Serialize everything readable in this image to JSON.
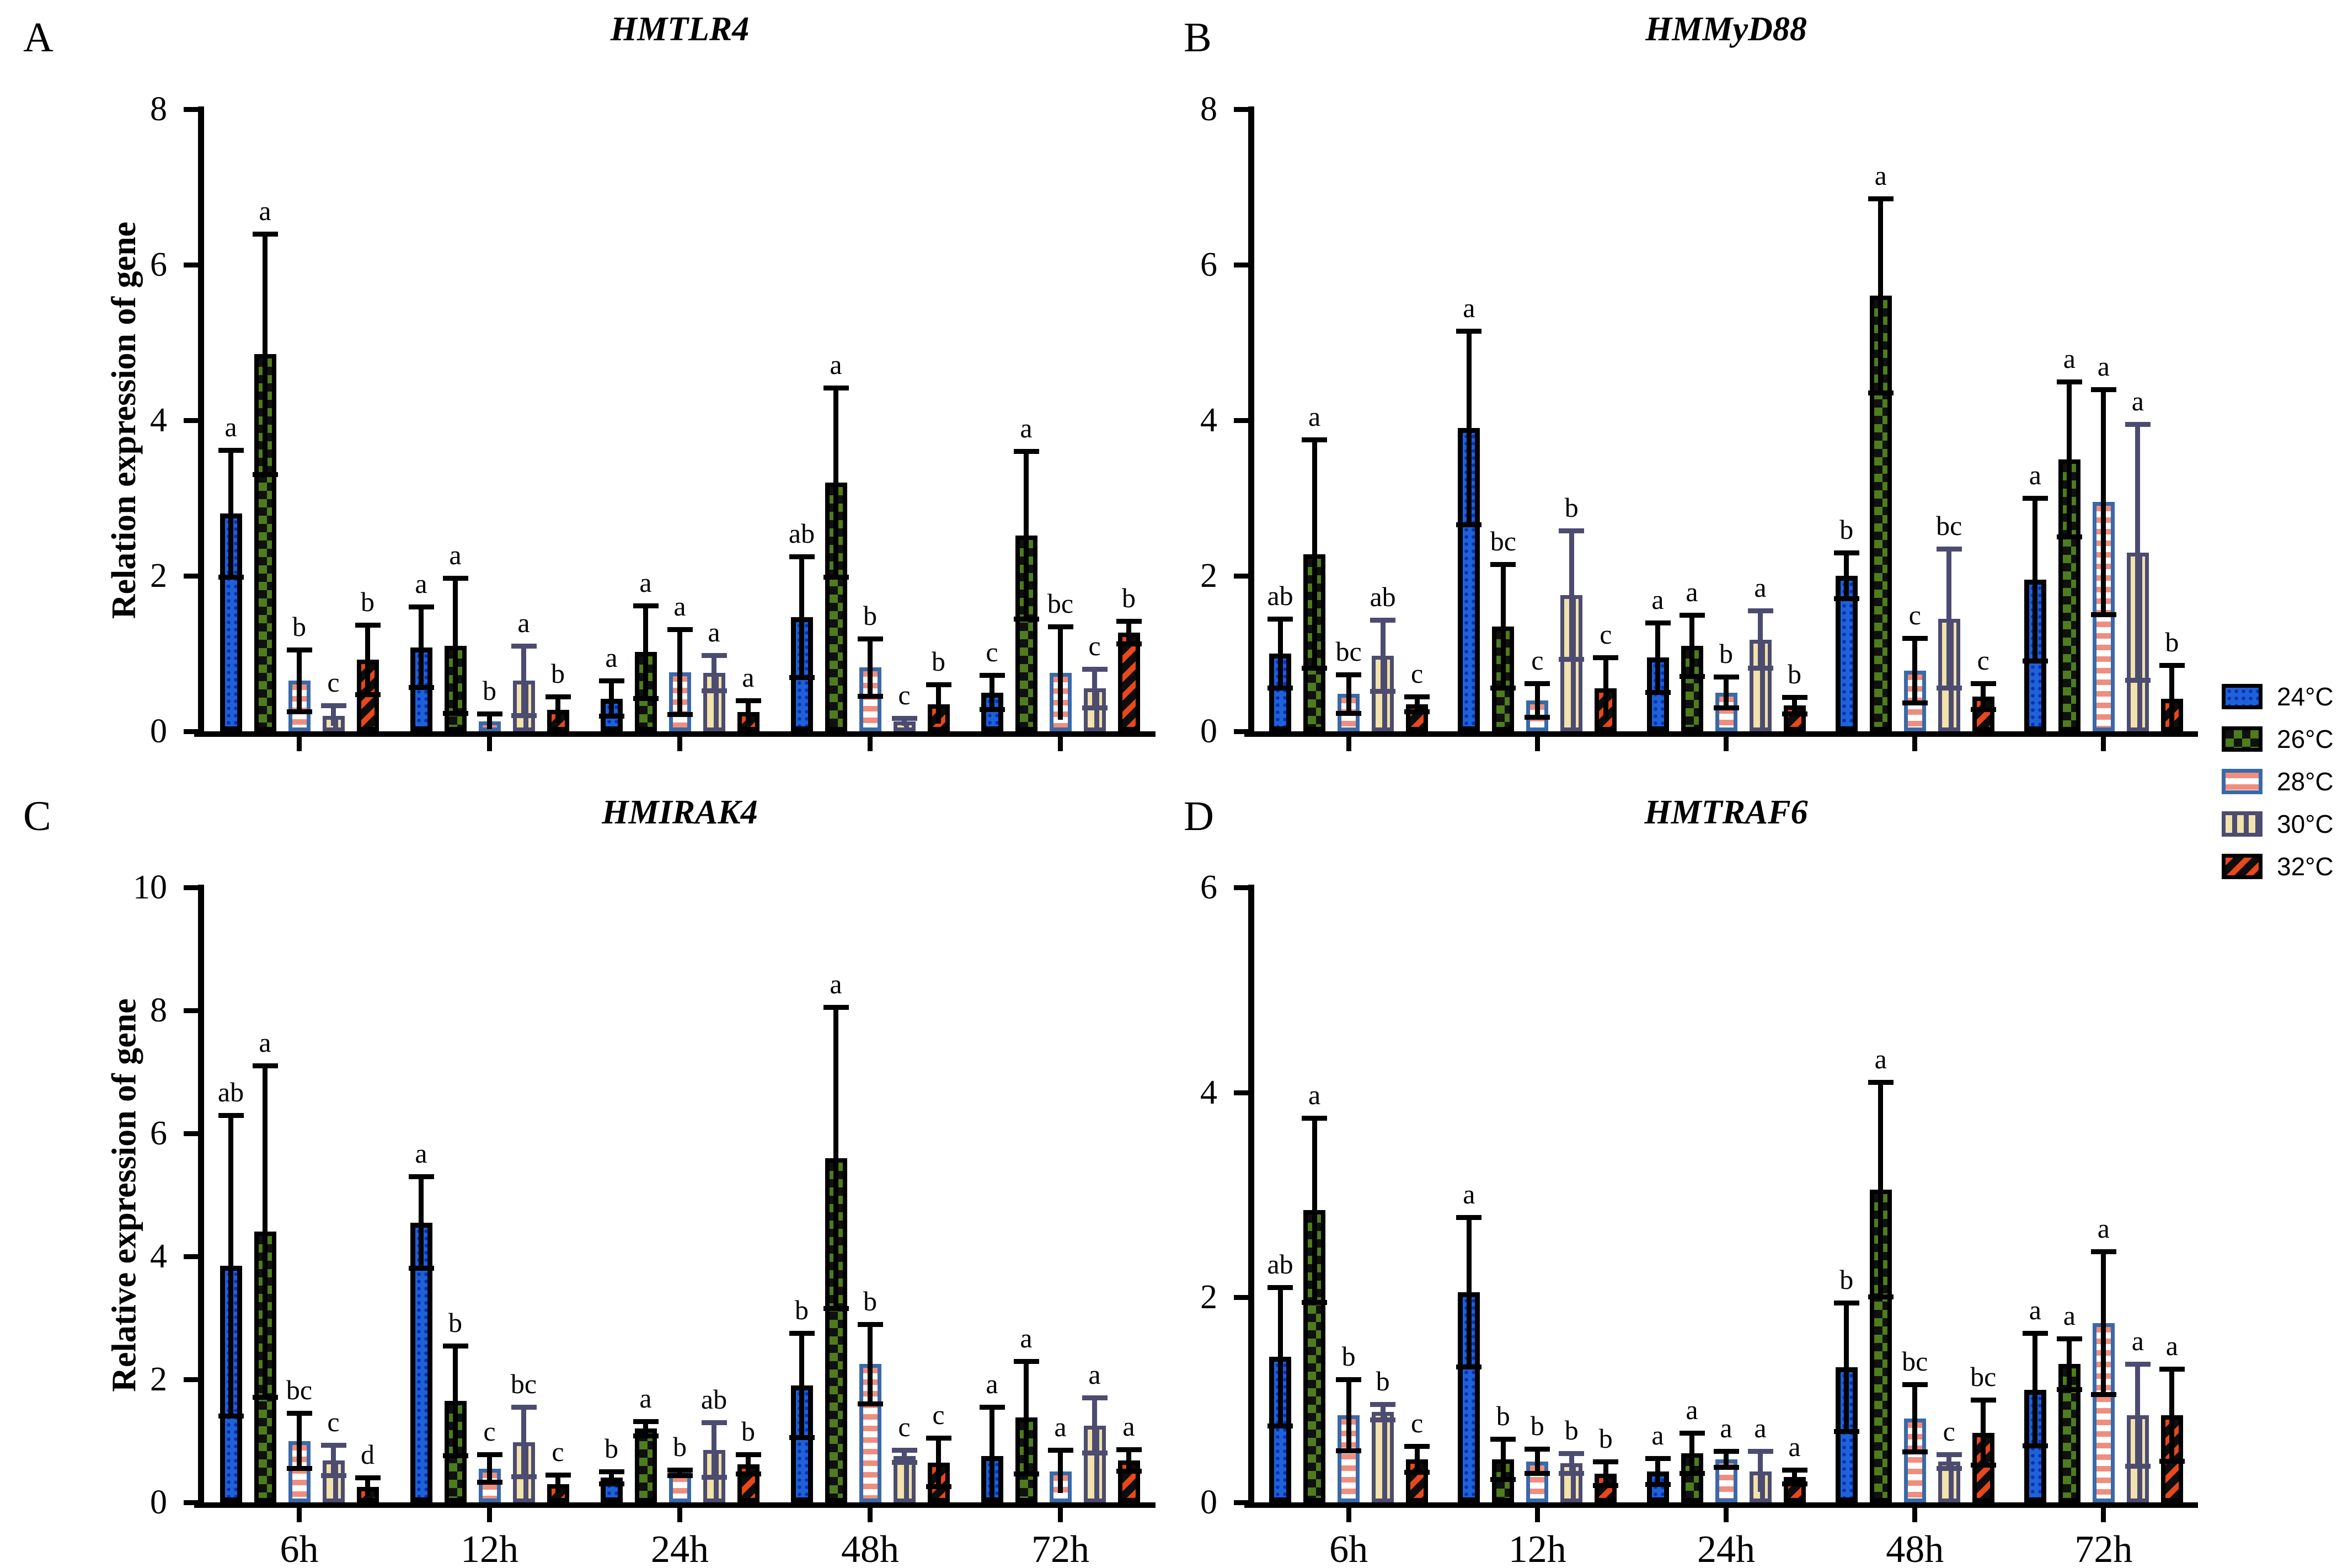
{
  "figure": {
    "panel_letters": [
      "A",
      "B",
      "C",
      "D"
    ],
    "legend": {
      "position": "right-middle",
      "items": [
        {
          "key": "t24",
          "label": "24°C",
          "fill": "#1E62D8",
          "pattern": "dots",
          "border": "#000000"
        },
        {
          "key": "t26",
          "label": "26°C",
          "fill": "#4E7D1D",
          "pattern": "checkerboard",
          "border": "#000000"
        },
        {
          "key": "t28",
          "label": "28°C",
          "fill": "#EF8E7E",
          "pattern": "horizontal-stripes",
          "border": "#3A69A8"
        },
        {
          "key": "t30",
          "label": "30°C",
          "fill": "#F2E2AB",
          "pattern": "vertical-stripes",
          "border": "#4C4C71"
        },
        {
          "key": "t32",
          "label": "32°C",
          "fill": "#E8481A",
          "pattern": "diagonal-stripes",
          "border": "#000000"
        }
      ]
    }
  },
  "chart_data": [
    {
      "type": "bar",
      "panel": "A",
      "title": "HMTLR4",
      "ylabel": "Relation expression of gene",
      "xlabel": "",
      "ylim": [
        0,
        8
      ],
      "yticks": [
        0,
        2,
        4,
        6,
        8
      ],
      "grid": false,
      "categories": [
        "6h",
        "12h",
        "24h",
        "48h",
        "72h"
      ],
      "show_category_labels": false,
      "series": [
        {
          "name": "24°C",
          "key": "t24",
          "values": [
            2.8,
            1.08,
            0.42,
            1.47,
            0.5
          ],
          "errors": [
            0.82,
            0.52,
            0.23,
            0.78,
            0.22
          ],
          "letters": [
            "a",
            "a",
            "a",
            "ab",
            "c"
          ]
        },
        {
          "name": "26°C",
          "key": "t26",
          "values": [
            4.85,
            1.1,
            1.02,
            3.2,
            2.52
          ],
          "errors": [
            1.55,
            0.87,
            0.6,
            1.22,
            1.08
          ],
          "letters": [
            "a",
            "a",
            "a",
            "a",
            "a"
          ]
        },
        {
          "name": "28°C",
          "key": "t28",
          "values": [
            0.65,
            0.13,
            0.76,
            0.82,
            0.75
          ],
          "errors": [
            0.4,
            0.1,
            0.55,
            0.37,
            0.6
          ],
          "letters": [
            "b",
            "b",
            "a",
            "b",
            "bc"
          ]
        },
        {
          "name": "30°C",
          "key": "t30",
          "values": [
            0.2,
            0.65,
            0.75,
            0.12,
            0.55
          ],
          "errors": [
            0.13,
            0.45,
            0.23,
            0.05,
            0.25
          ],
          "letters": [
            "c",
            "a",
            "a",
            "c",
            "c"
          ]
        },
        {
          "name": "32°C",
          "key": "t32",
          "values": [
            0.92,
            0.28,
            0.25,
            0.35,
            1.27
          ],
          "errors": [
            0.45,
            0.17,
            0.15,
            0.25,
            0.15
          ],
          "letters": [
            "b",
            "b",
            "a",
            "b",
            "b"
          ]
        }
      ]
    },
    {
      "type": "bar",
      "panel": "B",
      "title": "HMMyD88",
      "ylabel": null,
      "xlabel": "",
      "ylim": [
        0,
        8
      ],
      "yticks": [
        0,
        2,
        4,
        6,
        8
      ],
      "grid": false,
      "categories": [
        "6h",
        "12h",
        "24h",
        "48h",
        "72h"
      ],
      "show_category_labels": false,
      "series": [
        {
          "name": "24°C",
          "key": "t24",
          "values": [
            1.0,
            3.9,
            0.95,
            2.0,
            1.95
          ],
          "errors": [
            0.45,
            1.25,
            0.45,
            0.3,
            1.05
          ],
          "letters": [
            "ab",
            "a",
            "a",
            "b",
            "a"
          ]
        },
        {
          "name": "26°C",
          "key": "t26",
          "values": [
            2.28,
            1.35,
            1.1,
            5.6,
            3.5
          ],
          "errors": [
            1.47,
            0.8,
            0.4,
            1.25,
            1.0
          ],
          "letters": [
            "a",
            "bc",
            "a",
            "a",
            "a"
          ]
        },
        {
          "name": "28°C",
          "key": "t28",
          "values": [
            0.48,
            0.4,
            0.5,
            0.78,
            2.95
          ],
          "errors": [
            0.25,
            0.22,
            0.2,
            0.42,
            1.45
          ],
          "letters": [
            "bc",
            "c",
            "b",
            "c",
            "a"
          ]
        },
        {
          "name": "30°C",
          "key": "t30",
          "values": [
            0.97,
            1.75,
            1.18,
            1.45,
            2.3
          ],
          "errors": [
            0.46,
            0.83,
            0.37,
            0.9,
            1.65
          ],
          "letters": [
            "ab",
            "b",
            "a",
            "bc",
            "a"
          ]
        },
        {
          "name": "32°C",
          "key": "t32",
          "values": [
            0.35,
            0.55,
            0.33,
            0.45,
            0.42
          ],
          "errors": [
            0.1,
            0.4,
            0.11,
            0.17,
            0.43
          ],
          "letters": [
            "c",
            "c",
            "b",
            "c",
            "b"
          ]
        }
      ]
    },
    {
      "type": "bar",
      "panel": "C",
      "title": "HMIRAK4",
      "ylabel": "Relative expression of gene",
      "xlabel": "",
      "ylim": [
        0,
        10
      ],
      "yticks": [
        0,
        2,
        4,
        6,
        8,
        10
      ],
      "grid": false,
      "categories": [
        "6h",
        "12h",
        "24h",
        "48h",
        "72h"
      ],
      "show_category_labels": true,
      "series": [
        {
          "name": "24°C",
          "key": "t24",
          "values": [
            3.85,
            4.55,
            0.4,
            1.9,
            0.75
          ],
          "errors": [
            2.45,
            0.75,
            0.1,
            0.85,
            0.8
          ],
          "letters": [
            "ab",
            "a",
            "b",
            "b",
            "a"
          ]
        },
        {
          "name": "26°C",
          "key": "t26",
          "values": [
            4.4,
            1.65,
            1.2,
            5.6,
            1.38
          ],
          "errors": [
            2.7,
            0.9,
            0.12,
            2.45,
            0.92
          ],
          "letters": [
            "a",
            "b",
            "a",
            "a",
            "a"
          ]
        },
        {
          "name": "28°C",
          "key": "t28",
          "values": [
            1.0,
            0.55,
            0.48,
            2.25,
            0.5
          ],
          "errors": [
            0.45,
            0.23,
            0.05,
            0.65,
            0.35
          ],
          "letters": [
            "bc",
            "c",
            "b",
            "b",
            "a"
          ]
        },
        {
          "name": "30°C",
          "key": "t30",
          "values": [
            0.68,
            0.98,
            0.85,
            0.75,
            1.25
          ],
          "errors": [
            0.25,
            0.57,
            0.45,
            0.1,
            0.45
          ],
          "letters": [
            "c",
            "bc",
            "ab",
            "c",
            "a"
          ]
        },
        {
          "name": "32°C",
          "key": "t32",
          "values": [
            0.25,
            0.3,
            0.62,
            0.65,
            0.68
          ],
          "errors": [
            0.15,
            0.15,
            0.16,
            0.4,
            0.18
          ],
          "letters": [
            "d",
            "c",
            "b",
            "c",
            "a"
          ]
        }
      ]
    },
    {
      "type": "bar",
      "panel": "D",
      "title": "HMTRAF6",
      "ylabel": null,
      "xlabel": "",
      "ylim": [
        0,
        6
      ],
      "yticks": [
        0,
        2,
        4,
        6
      ],
      "grid": false,
      "categories": [
        "6h",
        "12h",
        "24h",
        "48h",
        "72h"
      ],
      "show_category_labels": true,
      "series": [
        {
          "name": "24°C",
          "key": "t24",
          "values": [
            1.42,
            2.05,
            0.3,
            1.32,
            1.1
          ],
          "errors": [
            0.68,
            0.73,
            0.13,
            0.63,
            0.55
          ],
          "letters": [
            "ab",
            "a",
            "a",
            "b",
            "a"
          ]
        },
        {
          "name": "26°C",
          "key": "t26",
          "values": [
            2.85,
            0.42,
            0.48,
            3.05,
            1.35
          ],
          "errors": [
            0.9,
            0.2,
            0.2,
            1.05,
            0.25
          ],
          "letters": [
            "a",
            "b",
            "a",
            "a",
            "a"
          ]
        },
        {
          "name": "28°C",
          "key": "t28",
          "values": [
            0.85,
            0.4,
            0.42,
            0.82,
            1.75
          ],
          "errors": [
            0.35,
            0.12,
            0.08,
            0.33,
            0.7
          ],
          "letters": [
            "b",
            "b",
            "a",
            "bc",
            "a"
          ]
        },
        {
          "name": "30°C",
          "key": "t30",
          "values": [
            0.88,
            0.38,
            0.3,
            0.4,
            0.85
          ],
          "errors": [
            0.08,
            0.1,
            0.2,
            0.07,
            0.5
          ],
          "letters": [
            "b",
            "b",
            "a",
            "c",
            "a"
          ]
        },
        {
          "name": "32°C",
          "key": "t32",
          "values": [
            0.42,
            0.28,
            0.25,
            0.68,
            0.85
          ],
          "errors": [
            0.13,
            0.12,
            0.07,
            0.32,
            0.45
          ],
          "letters": [
            "c",
            "b",
            "a",
            "bc",
            "a"
          ]
        }
      ]
    }
  ]
}
